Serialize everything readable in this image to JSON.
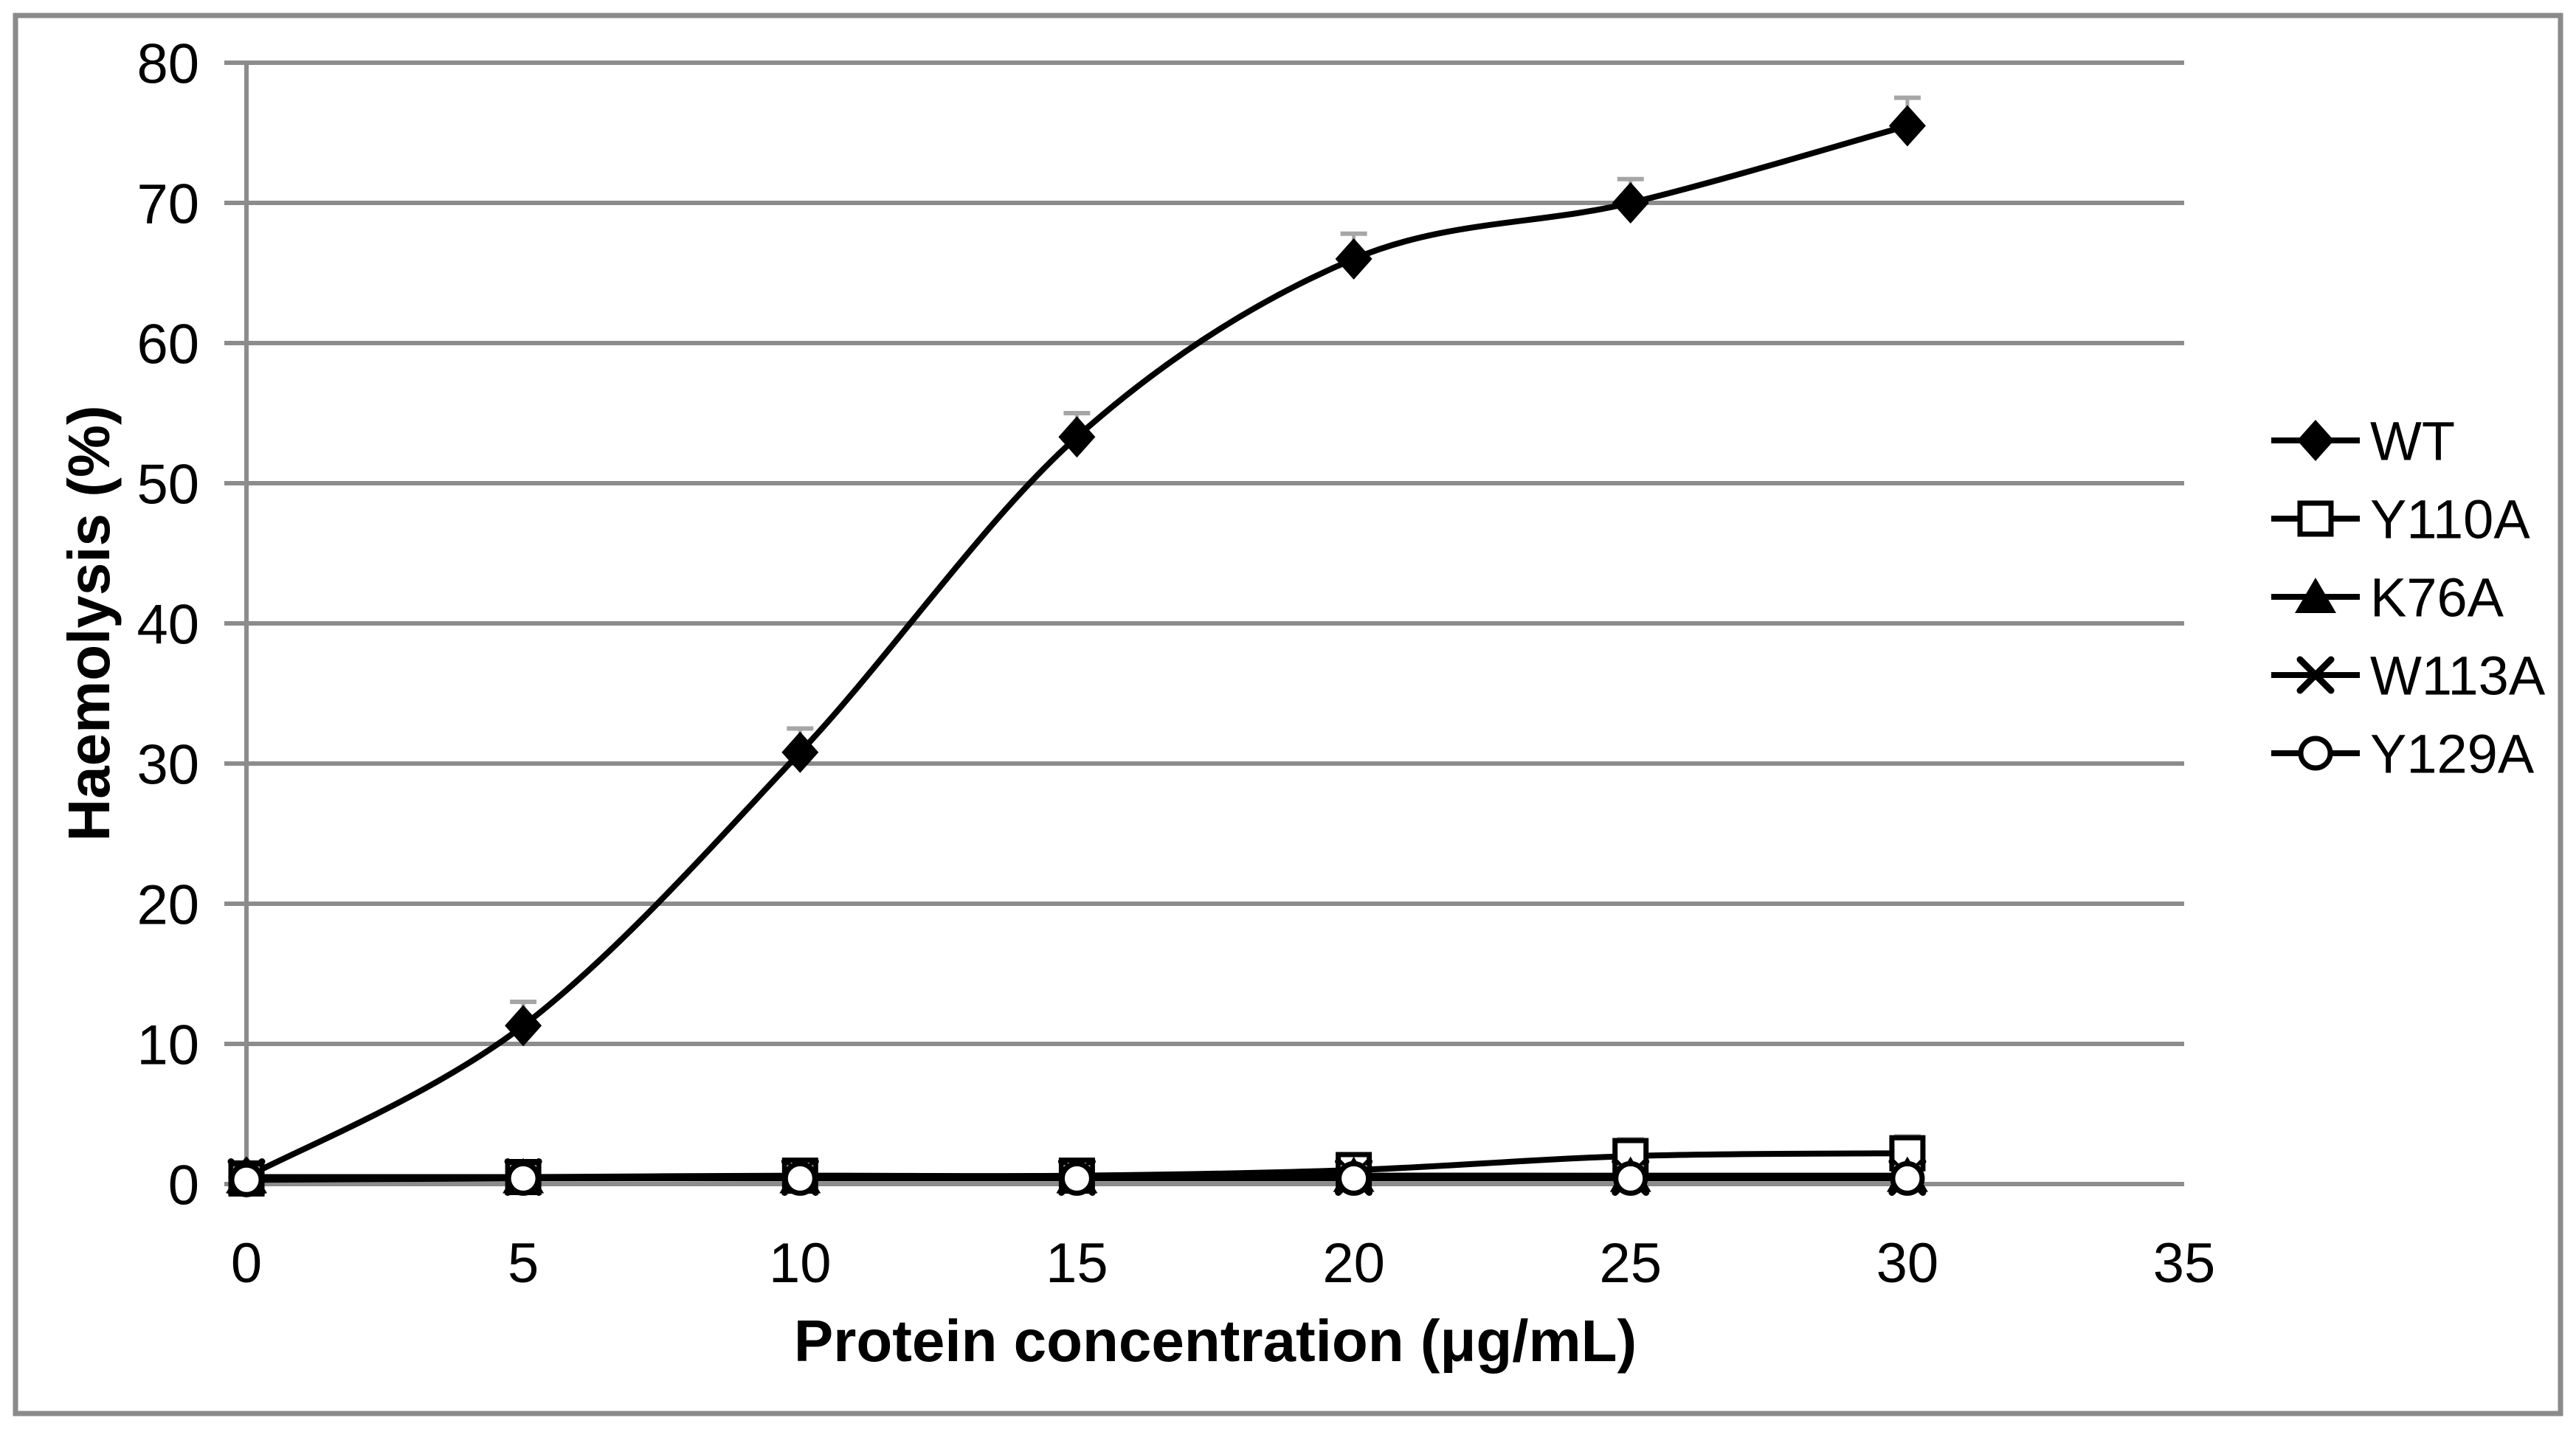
{
  "figure": {
    "background": "#ffffff",
    "border_color": "#8a8a8a",
    "border_width": 7
  },
  "chart_data": {
    "type": "line",
    "title": "",
    "xlabel": "Protein concentration (μg/mL)",
    "ylabel": "Haemolysis (%)",
    "xlim": [
      0,
      35
    ],
    "ylim": [
      0,
      80
    ],
    "x_ticks": [
      0,
      5,
      10,
      15,
      20,
      25,
      30,
      35
    ],
    "y_ticks": [
      0,
      10,
      20,
      30,
      40,
      50,
      60,
      70,
      80
    ],
    "grid": "horizontal",
    "legend_position": "right",
    "line_smoothing": true,
    "x": [
      0,
      5,
      10,
      15,
      20,
      25,
      30
    ],
    "series": [
      {
        "name": "WT",
        "marker": "diamond-filled",
        "values": [
          0.5,
          11.3,
          30.8,
          53.3,
          66.0,
          70.0,
          75.5
        ],
        "error_up": [
          1.0,
          1.7,
          1.7,
          1.7,
          1.8,
          1.7,
          2.0
        ]
      },
      {
        "name": "Y110A",
        "marker": "square-open",
        "values": [
          0.4,
          0.5,
          0.6,
          0.6,
          1.0,
          2.0,
          2.2
        ],
        "error_up": [
          0.7,
          0.7,
          0.7,
          0.7,
          1.0,
          1.2,
          1.2
        ]
      },
      {
        "name": "K76A",
        "marker": "triangle-filled",
        "values": [
          0.5,
          0.5,
          0.5,
          0.5,
          0.6,
          0.6,
          0.6
        ],
        "error_up": [
          0,
          0,
          0,
          0,
          0,
          0,
          0
        ]
      },
      {
        "name": "W113A",
        "marker": "x-cross",
        "values": [
          0.5,
          0.5,
          0.5,
          0.5,
          0.5,
          0.5,
          0.5
        ],
        "error_up": [
          0,
          0,
          0,
          0,
          0,
          0,
          0
        ]
      },
      {
        "name": "Y129A",
        "marker": "circle-open",
        "values": [
          0.3,
          0.4,
          0.4,
          0.4,
          0.4,
          0.4,
          0.4
        ],
        "error_up": [
          0.8,
          0.8,
          0.8,
          0.8,
          0.8,
          0.8,
          0.8
        ]
      }
    ],
    "colors": {
      "series_stroke": "#000000",
      "gridline": "#8c8c8c",
      "axis": "#8c8c8c",
      "error_bar": "#a6a6a6",
      "marker_fill_open": "#ffffff"
    }
  }
}
